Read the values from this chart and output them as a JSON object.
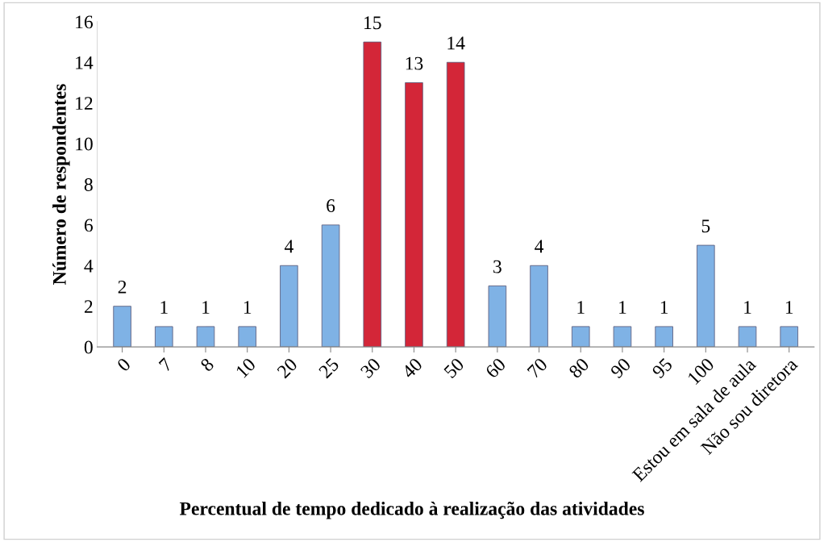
{
  "chart_data": {
    "type": "bar",
    "xlabel": "Percentual de tempo dedicado à realização das atividades",
    "ylabel": "Número de respondentes",
    "categories": [
      "0",
      "7",
      "8",
      "10",
      "20",
      "25",
      "30",
      "40",
      "50",
      "60",
      "70",
      "80",
      "90",
      "95",
      "100",
      "Estou em sala de aula",
      "Não sou diretora"
    ],
    "values": [
      2,
      1,
      1,
      1,
      4,
      6,
      15,
      13,
      14,
      3,
      4,
      1,
      1,
      1,
      5,
      1,
      1
    ],
    "colors": [
      "#7fb2e5",
      "#7fb2e5",
      "#7fb2e5",
      "#7fb2e5",
      "#7fb2e5",
      "#7fb2e5",
      "#d32638",
      "#d32638",
      "#d32638",
      "#7fb2e5",
      "#7fb2e5",
      "#7fb2e5",
      "#7fb2e5",
      "#7fb2e5",
      "#7fb2e5",
      "#7fb2e5",
      "#7fb2e5"
    ],
    "ylim": [
      0,
      16
    ],
    "yticks": [
      0,
      2,
      4,
      6,
      8,
      10,
      12,
      14,
      16
    ],
    "data_labels": true,
    "grid": false,
    "legend": false
  }
}
